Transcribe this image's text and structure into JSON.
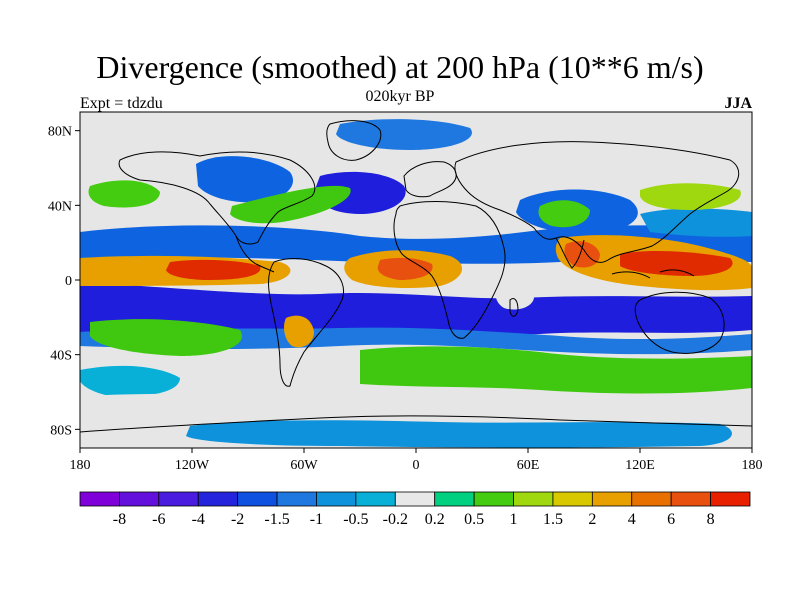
{
  "title": "Divergence (smoothed) at 200 hPa (10**6 m/s)",
  "subtitle_center": "020kyr BP",
  "subtitle_left": "Expt = tdzdu",
  "subtitle_right": "JJA",
  "lat_ticks": [
    "80N",
    "40N",
    "0",
    "40S",
    "80S"
  ],
  "lon_ticks": [
    "180",
    "120W",
    "60W",
    "0",
    "60E",
    "120E",
    "180"
  ],
  "colorbar": {
    "colors": [
      "#7f00d8",
      "#6410dc",
      "#4a1ce0",
      "#2424dc",
      "#0e50e0",
      "#1e78e0",
      "#0f92dc",
      "#08b0d8",
      "#e8e8e8",
      "#00d080",
      "#44cc10",
      "#a0d810",
      "#d8c800",
      "#e8a000",
      "#e87000",
      "#e85010",
      "#e82000"
    ],
    "labels": [
      "-8",
      "-6",
      "-4",
      "-2",
      "-1.5",
      "-1",
      "-0.5",
      "-0.2",
      "0.2",
      "0.5",
      "1",
      "1.5",
      "2",
      "4",
      "6",
      "8"
    ]
  },
  "colors": {
    "background": "#e6e6e6",
    "strong_negative": "#1e1edc",
    "negative": "#0e64e0",
    "weak_negative": "#08b0d8",
    "weak_positive": "#40c810",
    "positive": "#e8a000",
    "strong_positive": "#e02a00"
  }
}
